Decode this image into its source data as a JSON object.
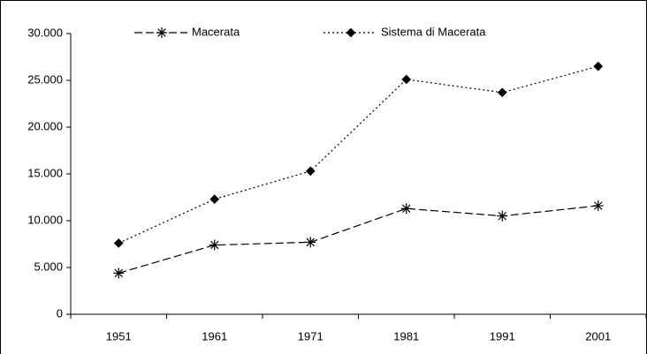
{
  "chart_data": {
    "type": "line",
    "categories": [
      "1951",
      "1961",
      "1971",
      "1981",
      "1991",
      "2001"
    ],
    "series": [
      {
        "name": "Macerata",
        "color": "#000000",
        "dash": "dashed",
        "marker": "asterisk",
        "values": [
          4400,
          7400,
          7700,
          11300,
          10500,
          11600
        ]
      },
      {
        "name": "Sistema di Macerata",
        "color": "#000000",
        "dash": "dotted",
        "marker": "diamond",
        "values": [
          7600,
          12300,
          15300,
          25100,
          23700,
          26500
        ]
      }
    ],
    "ylim": [
      0,
      30000
    ],
    "yticks": [
      0,
      {
        "value": 5000,
        "label": "5.000"
      },
      {
        "value": 10000,
        "label": "10.000"
      },
      {
        "value": 15000,
        "label": "15.000"
      },
      {
        "value": 20000,
        "label": "20.000"
      },
      {
        "value": 25000,
        "label": "25.000"
      },
      {
        "value": 30000,
        "label": "30.000"
      }
    ],
    "grid": false,
    "legend": "top"
  }
}
